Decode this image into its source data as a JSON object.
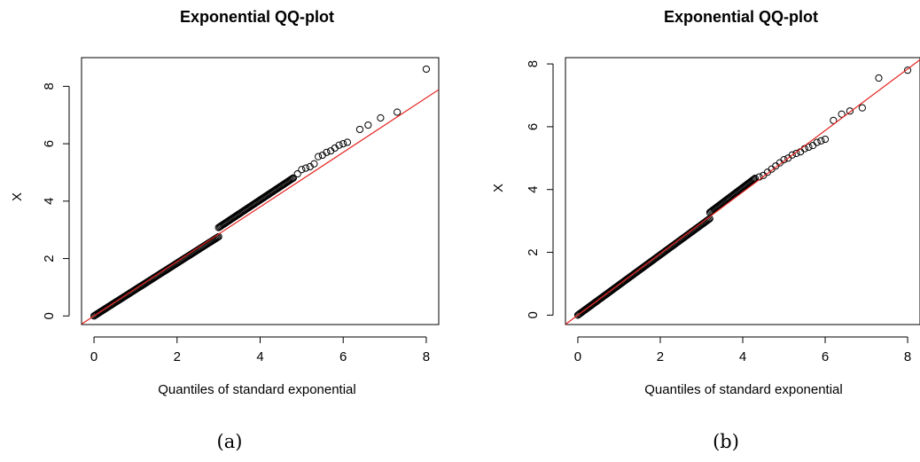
{
  "chart_data": [
    {
      "type": "scatter",
      "title": "Exponential QQ-plot",
      "caption": "(a)",
      "xlabel": "Quantiles of standard exponential",
      "ylabel": "X",
      "xlim": [
        -0.3,
        8.3
      ],
      "ylim": [
        -0.3,
        9.0
      ],
      "xticks": [
        0,
        2,
        4,
        6,
        8
      ],
      "yticks": [
        0,
        2,
        4,
        6,
        8
      ],
      "grid": false,
      "reference_line": {
        "color": "#e4231f",
        "intercept": 0.0,
        "slope": 0.95
      },
      "dense_segments": [
        {
          "x_start": 0.0,
          "x_end": 3.0,
          "intercept": 0.0,
          "slope": 0.92
        },
        {
          "x_start": 3.0,
          "x_end": 4.8,
          "intercept": 0.2,
          "slope": 0.96
        }
      ],
      "points": [
        [
          4.9,
          4.95
        ],
        [
          5.0,
          5.1
        ],
        [
          5.1,
          5.15
        ],
        [
          5.2,
          5.2
        ],
        [
          5.3,
          5.3
        ],
        [
          5.4,
          5.55
        ],
        [
          5.5,
          5.6
        ],
        [
          5.6,
          5.7
        ],
        [
          5.7,
          5.75
        ],
        [
          5.8,
          5.85
        ],
        [
          5.9,
          5.95
        ],
        [
          6.0,
          6.0
        ],
        [
          6.1,
          6.05
        ],
        [
          6.4,
          6.5
        ],
        [
          6.6,
          6.65
        ],
        [
          6.9,
          6.9
        ],
        [
          7.3,
          7.1
        ],
        [
          8.0,
          8.6
        ]
      ]
    },
    {
      "type": "scatter",
      "title": "Exponential QQ-plot",
      "caption": "(b)",
      "xlabel": "Quantiles of standard exponential",
      "ylabel": "X",
      "xlim": [
        -0.3,
        8.3
      ],
      "ylim": [
        -0.3,
        8.2
      ],
      "xticks": [
        0,
        2,
        4,
        6,
        8
      ],
      "yticks": [
        0,
        2,
        4,
        6,
        8
      ],
      "grid": false,
      "reference_line": {
        "color": "#e4231f",
        "intercept": 0.0,
        "slope": 0.98
      },
      "dense_segments": [
        {
          "x_start": 0.0,
          "x_end": 3.2,
          "intercept": 0.0,
          "slope": 0.96
        },
        {
          "x_start": 3.2,
          "x_end": 4.3,
          "intercept": 0.1,
          "slope": 0.99
        }
      ],
      "points": [
        [
          4.4,
          4.4
        ],
        [
          4.5,
          4.45
        ],
        [
          4.6,
          4.55
        ],
        [
          4.7,
          4.65
        ],
        [
          4.8,
          4.75
        ],
        [
          4.9,
          4.85
        ],
        [
          5.0,
          4.95
        ],
        [
          5.1,
          5.0
        ],
        [
          5.2,
          5.1
        ],
        [
          5.3,
          5.15
        ],
        [
          5.4,
          5.2
        ],
        [
          5.5,
          5.3
        ],
        [
          5.6,
          5.35
        ],
        [
          5.7,
          5.4
        ],
        [
          5.8,
          5.5
        ],
        [
          5.9,
          5.55
        ],
        [
          6.0,
          5.6
        ],
        [
          6.2,
          6.2
        ],
        [
          6.4,
          6.4
        ],
        [
          6.6,
          6.5
        ],
        [
          6.9,
          6.6
        ],
        [
          7.3,
          7.55
        ],
        [
          8.0,
          7.8
        ]
      ]
    }
  ]
}
